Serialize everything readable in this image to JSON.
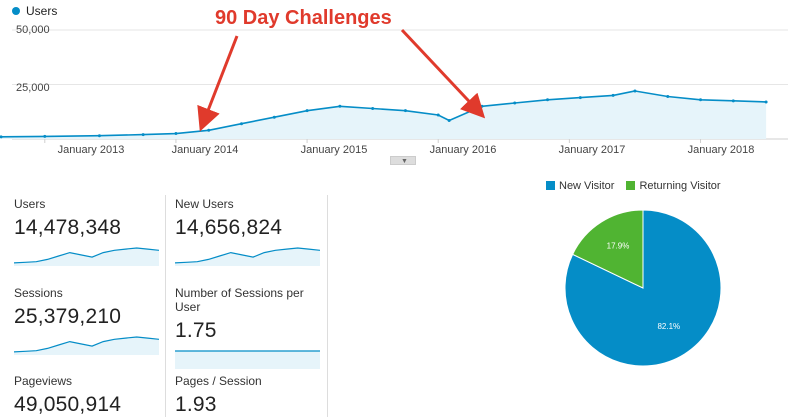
{
  "main_chart": {
    "legend_label": "Users",
    "annotation": "90 Day Challenges",
    "y_ticks": [
      {
        "value": 50000,
        "label": "50,000"
      },
      {
        "value": 25000,
        "label": "25,000"
      }
    ],
    "x_ticks": [
      "January 2013",
      "January 2014",
      "January 2015",
      "January 2016",
      "January 2017",
      "January 2018"
    ],
    "colors": {
      "line": "#058dc7",
      "fill": "#e6f4fa",
      "annotation": "#e03a2c"
    }
  },
  "chart_data": {
    "type": "area",
    "title": "",
    "xlabel": "",
    "ylabel": "",
    "ylim": [
      0,
      50000
    ],
    "legend": "top-left",
    "grid": true,
    "series": [
      {
        "name": "Users",
        "x": [
          "2012-09",
          "2013-01",
          "2013-06",
          "2013-10",
          "2014-01",
          "2014-04",
          "2014-07",
          "2014-10",
          "2015-01",
          "2015-04",
          "2015-07",
          "2015-10",
          "2016-01",
          "2016-02",
          "2016-05",
          "2016-08",
          "2016-11",
          "2017-02",
          "2017-05",
          "2017-07",
          "2017-10",
          "2018-01",
          "2018-04",
          "2018-07"
        ],
        "values": [
          1000,
          1200,
          1500,
          2000,
          2500,
          4000,
          7000,
          10000,
          13000,
          15000,
          14000,
          13000,
          11000,
          8500,
          15000,
          16500,
          18000,
          19000,
          20000,
          22000,
          19500,
          18000,
          17500,
          17000
        ]
      }
    ]
  },
  "metrics": [
    {
      "label": "Users",
      "value": "14,478,348",
      "spark": [
        1,
        1.5,
        2,
        4,
        7,
        10,
        8,
        6,
        10,
        12,
        13,
        14,
        13,
        12
      ]
    },
    {
      "label": "New Users",
      "value": "14,656,824",
      "spark": [
        1,
        1.5,
        2,
        4,
        7,
        10,
        8,
        6,
        10,
        12,
        13,
        14,
        13,
        12
      ]
    },
    {
      "label": "Sessions",
      "value": "25,379,210",
      "spark": [
        1,
        1.5,
        2,
        4,
        7,
        10,
        8,
        6,
        10,
        12,
        13,
        14,
        13,
        12
      ]
    },
    {
      "label": "Number of Sessions per User",
      "value": "1.75",
      "spark": [
        10,
        10,
        10,
        10,
        10,
        10,
        10,
        10,
        10,
        10,
        10,
        10,
        10,
        10
      ]
    },
    {
      "label": "Pageviews",
      "value": "49,050,914"
    },
    {
      "label": "Pages / Session",
      "value": "1.93"
    }
  ],
  "pie": {
    "type": "pie",
    "slices": [
      {
        "label": "New Visitor",
        "value": 82.1,
        "text": "82.1%",
        "color": "#058dc7"
      },
      {
        "label": "Returning Visitor",
        "value": 17.9,
        "text": "17.9%",
        "color": "#50b432"
      }
    ]
  }
}
